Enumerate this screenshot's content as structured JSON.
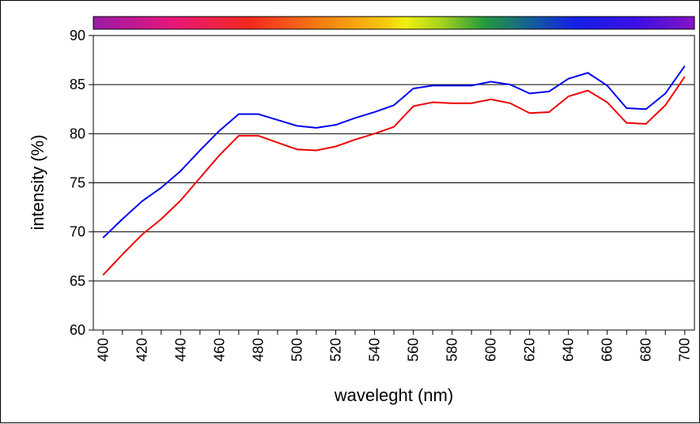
{
  "chart_data": {
    "type": "line",
    "title": "",
    "xlabel": "waveleght (nm)",
    "ylabel": "intensity (%)",
    "xlim": [
      395,
      705
    ],
    "ylim": [
      60,
      90
    ],
    "x_ticks": [
      400,
      420,
      440,
      460,
      480,
      500,
      520,
      540,
      560,
      580,
      600,
      620,
      640,
      660,
      680,
      700
    ],
    "y_ticks": [
      60,
      65,
      70,
      75,
      80,
      85,
      90
    ],
    "grid": "horizontal",
    "legend": "none",
    "spectrum_bar": true,
    "x": [
      400,
      410,
      420,
      430,
      440,
      450,
      460,
      470,
      480,
      490,
      500,
      510,
      520,
      530,
      540,
      550,
      560,
      570,
      580,
      590,
      600,
      610,
      620,
      630,
      640,
      650,
      660,
      670,
      680,
      690,
      700
    ],
    "series": [
      {
        "color": "#0000ee",
        "values": [
          69.4,
          71.3,
          73.1,
          74.5,
          76.2,
          78.3,
          80.3,
          82.0,
          82.0,
          81.4,
          80.8,
          80.6,
          80.9,
          81.6,
          82.2,
          82.9,
          84.6,
          84.9,
          84.9,
          84.9,
          85.3,
          85.0,
          84.1,
          84.3,
          85.6,
          86.2,
          84.9,
          82.6,
          82.5,
          84.1,
          86.9
        ]
      },
      {
        "color": "#ee0000",
        "values": [
          65.6,
          67.7,
          69.7,
          71.3,
          73.2,
          75.5,
          77.8,
          79.8,
          79.8,
          79.1,
          78.4,
          78.3,
          78.7,
          79.4,
          80.0,
          80.7,
          82.8,
          83.2,
          83.1,
          83.1,
          83.5,
          83.1,
          82.1,
          82.2,
          83.8,
          84.4,
          83.2,
          81.1,
          81.0,
          82.9,
          85.8
        ]
      }
    ]
  }
}
